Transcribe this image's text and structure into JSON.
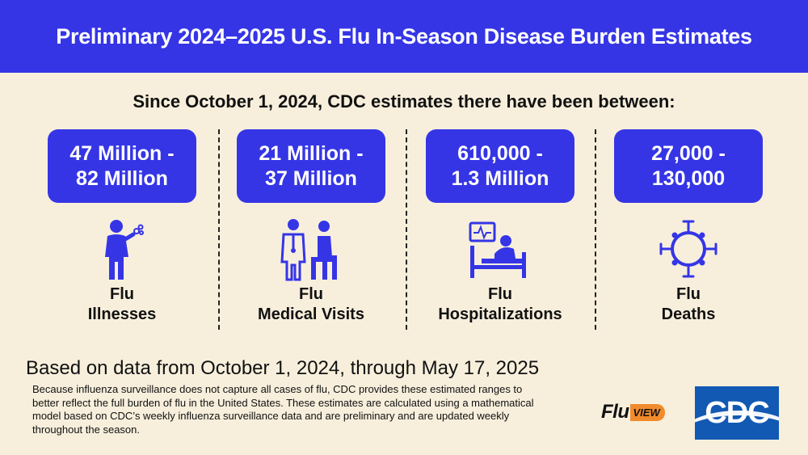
{
  "banner": {
    "title": "Preliminary 2024–2025 U.S. Flu In-Season Disease Burden Estimates"
  },
  "intro": "Since October 1, 2024, CDC estimates there have been between:",
  "columns": [
    {
      "range_line1": "47 Million -",
      "range_line2": "82 Million",
      "label_line1": "Flu",
      "label_line2": "Illnesses",
      "icon": "sick-person-icon"
    },
    {
      "range_line1": "21 Million -",
      "range_line2": "37 Million",
      "label_line1": "Flu",
      "label_line2": "Medical Visits",
      "icon": "doctor-patient-icon"
    },
    {
      "range_line1": "610,000 -",
      "range_line2": "1.3 Million",
      "label_line1": "Flu",
      "label_line2": "Hospitalizations",
      "icon": "hospital-bed-icon"
    },
    {
      "range_line1": "27,000 -",
      "range_line2": "130,000",
      "label_line1": "Flu",
      "label_line2": "Deaths",
      "icon": "virus-icon"
    }
  ],
  "based_on": "Based on data from October 1, 2024, through May 17, 2025",
  "note": "Because influenza surveillance does not capture all cases of flu, CDC provides these estimated ranges to better reflect the full burden of flu in the United States. These estimates are calculated using a mathematical model based on CDC’s weekly influenza surveillance data and are preliminary and are updated weekly throughout the season.",
  "logos": {
    "fluview_flu": "Flu",
    "fluview_view": "VIEW",
    "cdc": "CDC"
  },
  "colors": {
    "accent": "#3535e6",
    "background": "#f7efdc",
    "fluview_orange": "#f28b2c",
    "cdc_blue": "#1259b3"
  }
}
